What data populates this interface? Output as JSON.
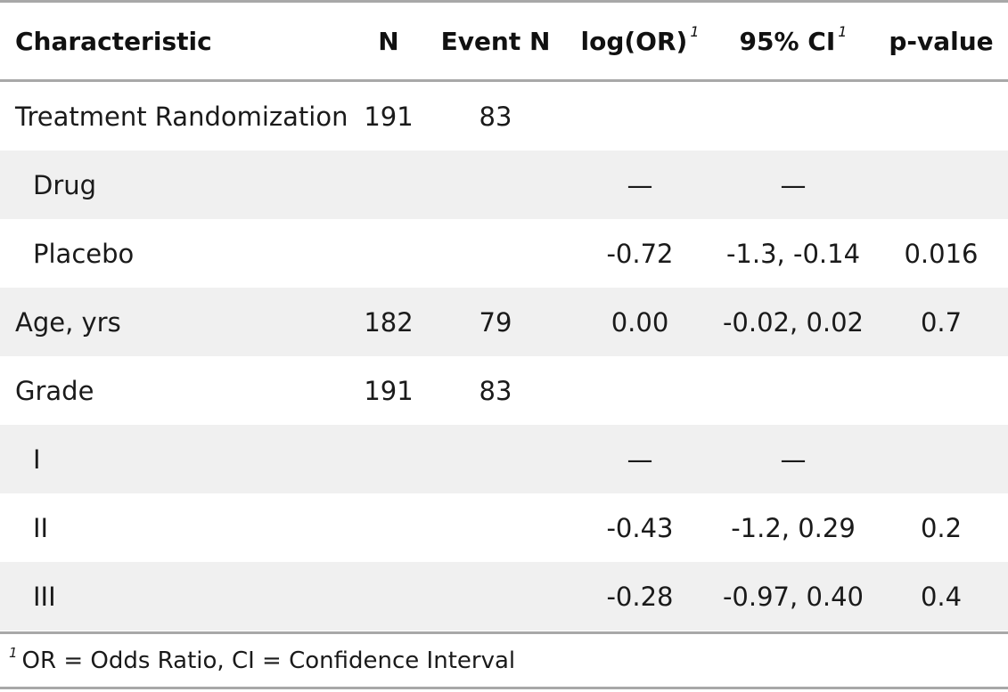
{
  "table": {
    "headers": {
      "characteristic": "Characteristic",
      "n": "N",
      "event_n": "Event N",
      "log_or": "log(OR)",
      "log_or_footnote_mark": "1",
      "ci": "95% CI",
      "ci_footnote_mark": "1",
      "p_value": "p-value"
    },
    "rows": [
      {
        "label": "Treatment Randomization",
        "n": "191",
        "event_n": "83",
        "log_or": "",
        "ci": "",
        "p": ""
      },
      {
        "label": "Drug",
        "n": "",
        "event_n": "",
        "log_or": "—",
        "ci": "—",
        "p": ""
      },
      {
        "label": "Placebo",
        "n": "",
        "event_n": "",
        "log_or": "-0.72",
        "ci": "-1.3, -0.14",
        "p": "0.016"
      },
      {
        "label": "Age, yrs",
        "n": "182",
        "event_n": "79",
        "log_or": "0.00",
        "ci": "-0.02, 0.02",
        "p": "0.7"
      },
      {
        "label": "Grade",
        "n": "191",
        "event_n": "83",
        "log_or": "",
        "ci": "",
        "p": ""
      },
      {
        "label": "I",
        "n": "",
        "event_n": "",
        "log_or": "—",
        "ci": "—",
        "p": ""
      },
      {
        "label": "II",
        "n": "",
        "event_n": "",
        "log_or": "-0.43",
        "ci": "-1.2, 0.29",
        "p": "0.2"
      },
      {
        "label": "III",
        "n": "",
        "event_n": "",
        "log_or": "-0.28",
        "ci": "-0.97, 0.40",
        "p": "0.4"
      }
    ],
    "footnote": {
      "mark": "1",
      "text": "OR = Odds Ratio, CI = Confidence Interval"
    }
  }
}
